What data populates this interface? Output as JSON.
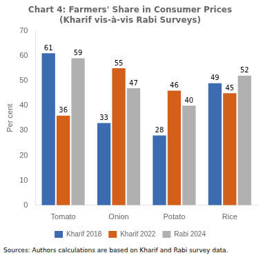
{
  "chart_data": {
    "type": "bar",
    "title": "Chart 4: Farmers' Share in Consumer Prices",
    "subtitle": "(Kharif vis-à-vis Rabi Surveys)",
    "y_label": "Per cent",
    "categories": [
      "Tomato",
      "Onion",
      "Potato",
      "Rice"
    ],
    "series": [
      {
        "name": "Kharif 2018",
        "color": "#3B6BB0",
        "values": [
          61,
          33,
          28,
          49
        ]
      },
      {
        "name": "Kharif 2022",
        "color": "#D2601A",
        "values": [
          36,
          55,
          46,
          45
        ]
      },
      {
        "name": "Rabi 2024",
        "color": "#B0B0B0",
        "values": [
          59,
          47,
          40,
          52
        ]
      }
    ],
    "ylim": [
      0,
      70
    ],
    "yticks": [
      0,
      10,
      20,
      30,
      40,
      50,
      60,
      70
    ],
    "grid": false,
    "legend": "bottom",
    "data_labels": true,
    "annotations": [
      "Sources: Authors calculations are based on Kharif and Rabi survey data."
    ]
  }
}
